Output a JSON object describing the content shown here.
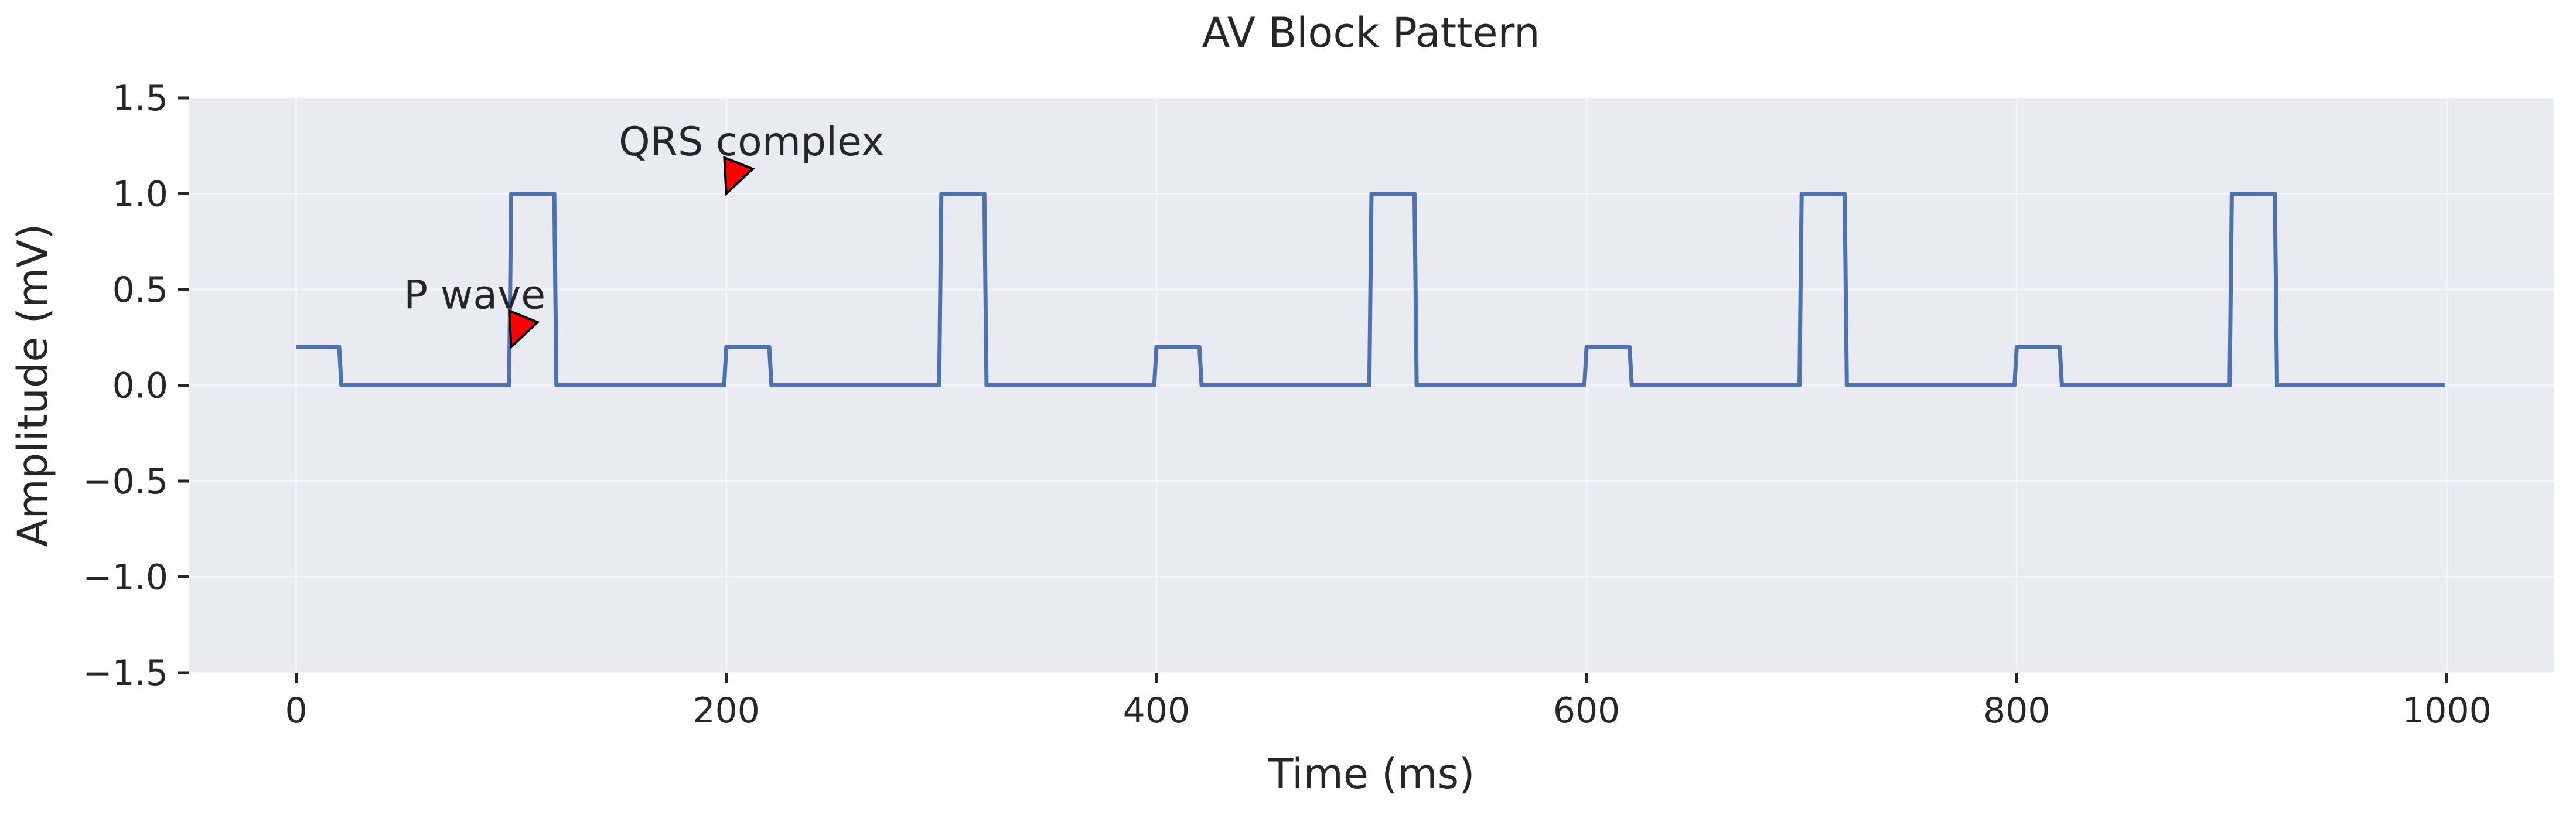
{
  "chart_data": {
    "type": "line",
    "title": "AV Block Pattern",
    "xlabel": "Time (ms)",
    "ylabel": "Amplitude (mV)",
    "xlim": [
      -50,
      1050
    ],
    "ylim": [
      -1.5,
      1.5
    ],
    "xticks": [
      0,
      200,
      400,
      600,
      800,
      1000
    ],
    "xtick_labels": [
      "0",
      "200",
      "400",
      "600",
      "800",
      "1000"
    ],
    "yticks": [
      1.5,
      1.0,
      0.5,
      0.0,
      -0.5,
      -1.0,
      -1.5
    ],
    "ytick_labels": [
      "1.5",
      "1.0",
      "0.5",
      "0.0",
      "−0.5",
      "−1.0",
      "−1.5"
    ],
    "grid": true,
    "background": "#eaeaf2",
    "series": [
      {
        "color": "#4c72b0",
        "x": [
          0,
          20,
          21,
          99,
          100,
          120,
          121,
          199,
          200,
          220,
          221,
          299,
          300,
          320,
          321,
          399,
          400,
          420,
          421,
          499,
          500,
          520,
          521,
          599,
          600,
          620,
          621,
          699,
          700,
          720,
          721,
          799,
          800,
          820,
          821,
          899,
          900,
          920,
          921,
          999
        ],
        "y": [
          0.2,
          0.2,
          0,
          0,
          1,
          1,
          0,
          0,
          0.2,
          0.2,
          0,
          0,
          1,
          1,
          0,
          0,
          0.2,
          0.2,
          0,
          0,
          1,
          1,
          0,
          0,
          0.2,
          0.2,
          0,
          0,
          1,
          1,
          0,
          0,
          0.2,
          0.2,
          0,
          0,
          1,
          1,
          0,
          0
        ]
      }
    ],
    "annotations": [
      {
        "text": "P wave",
        "text_x": 50,
        "text_y": 0.4,
        "point_x": 100,
        "point_y": 0.2,
        "arrow_color": "#ff0000"
      },
      {
        "text": "QRS complex",
        "text_x": 150,
        "text_y": 1.2,
        "point_x": 200,
        "point_y": 1.0,
        "arrow_color": "#ff0000"
      }
    ]
  }
}
